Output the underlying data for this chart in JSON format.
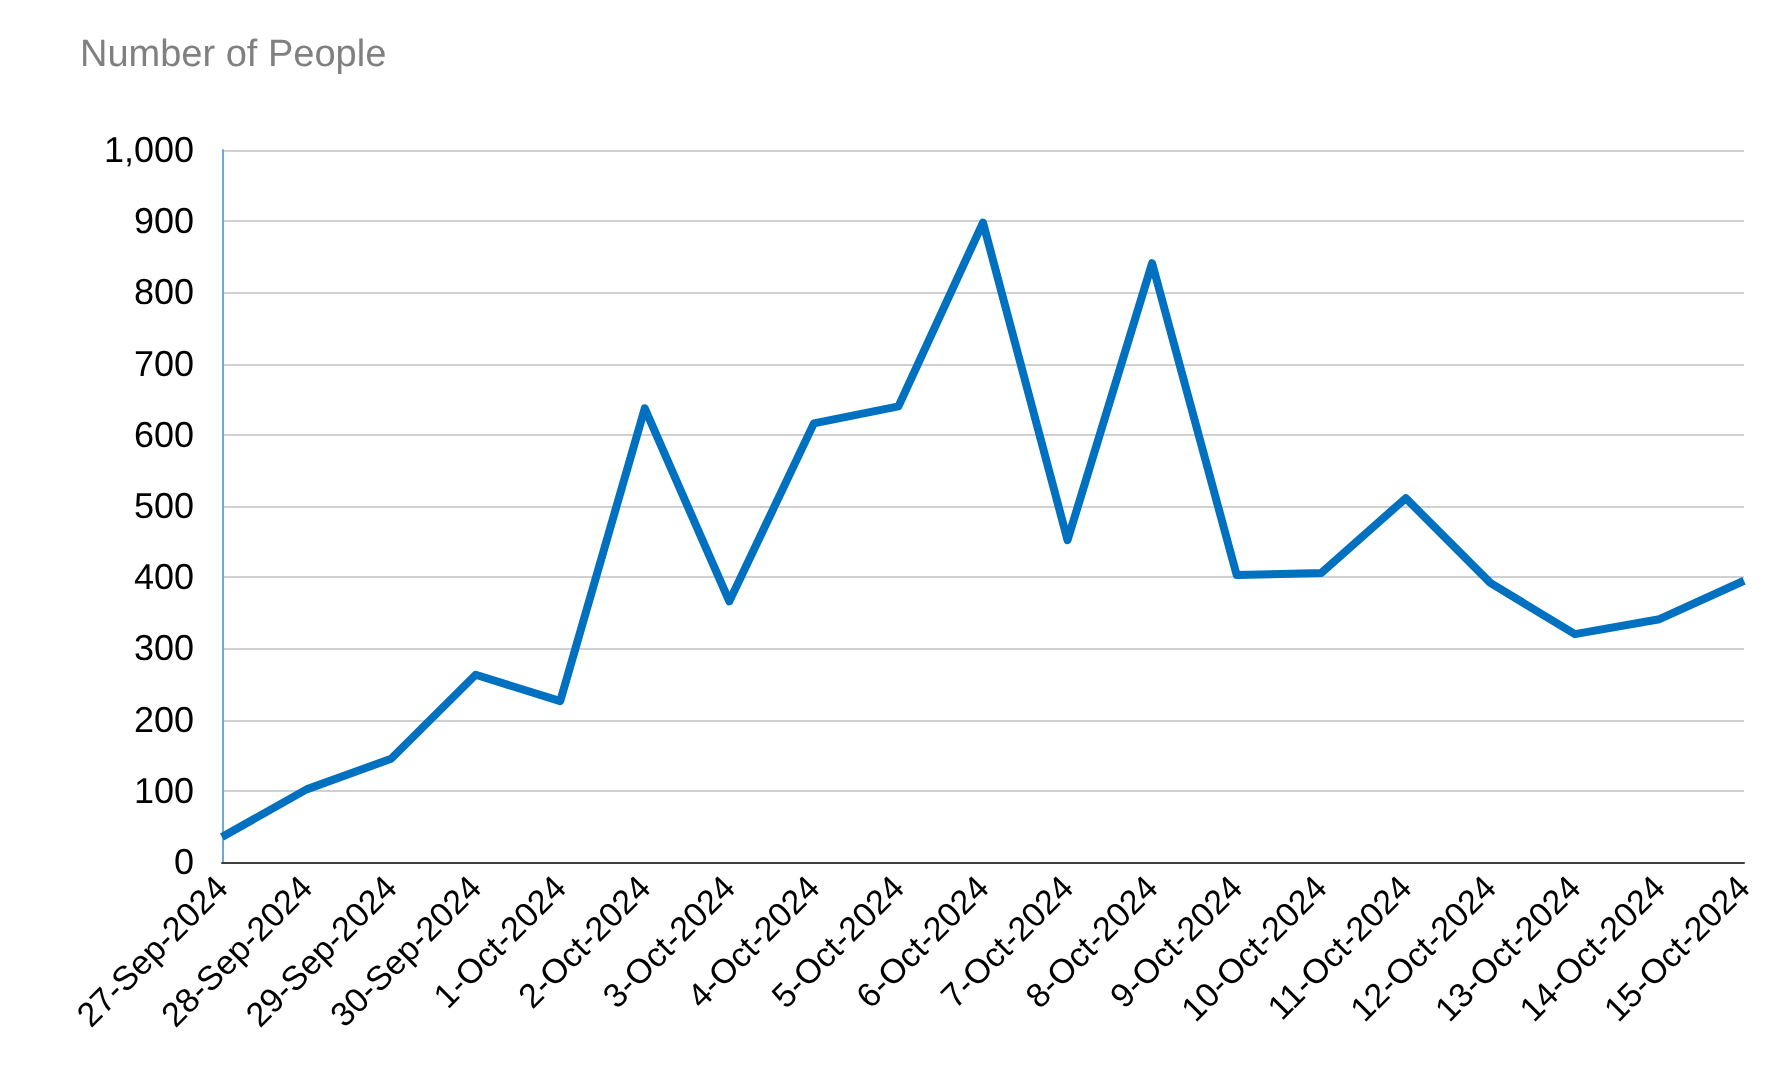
{
  "chart_data": {
    "type": "line",
    "ylabel": "Number of People",
    "categories": [
      "27-Sep-2024",
      "28-Sep-2024",
      "29-Sep-2024",
      "30-Sep-2024",
      "1-Oct-2024",
      "2-Oct-2024",
      "3-Oct-2024",
      "4-Oct-2024",
      "5-Oct-2024",
      "6-Oct-2024",
      "7-Oct-2024",
      "8-Oct-2024",
      "9-Oct-2024",
      "10-Oct-2024",
      "11-Oct-2024",
      "12-Oct-2024",
      "13-Oct-2024",
      "14-Oct-2024",
      "15-Oct-2024"
    ],
    "series": [
      {
        "color": "#0070c0",
        "values": [
          35,
          102,
          145,
          263,
          226,
          637,
          366,
          616,
          640,
          898,
          452,
          841,
          403,
          406,
          511,
          392,
          320,
          341,
          395
        ]
      }
    ],
    "ylim": [
      0,
      1000
    ],
    "yticks": [
      0,
      100,
      200,
      300,
      400,
      500,
      600,
      700,
      800,
      900,
      {
        "value": 1000,
        "label": "1,000"
      }
    ],
    "grid": "y",
    "marker": "none",
    "line_style": "solid"
  }
}
